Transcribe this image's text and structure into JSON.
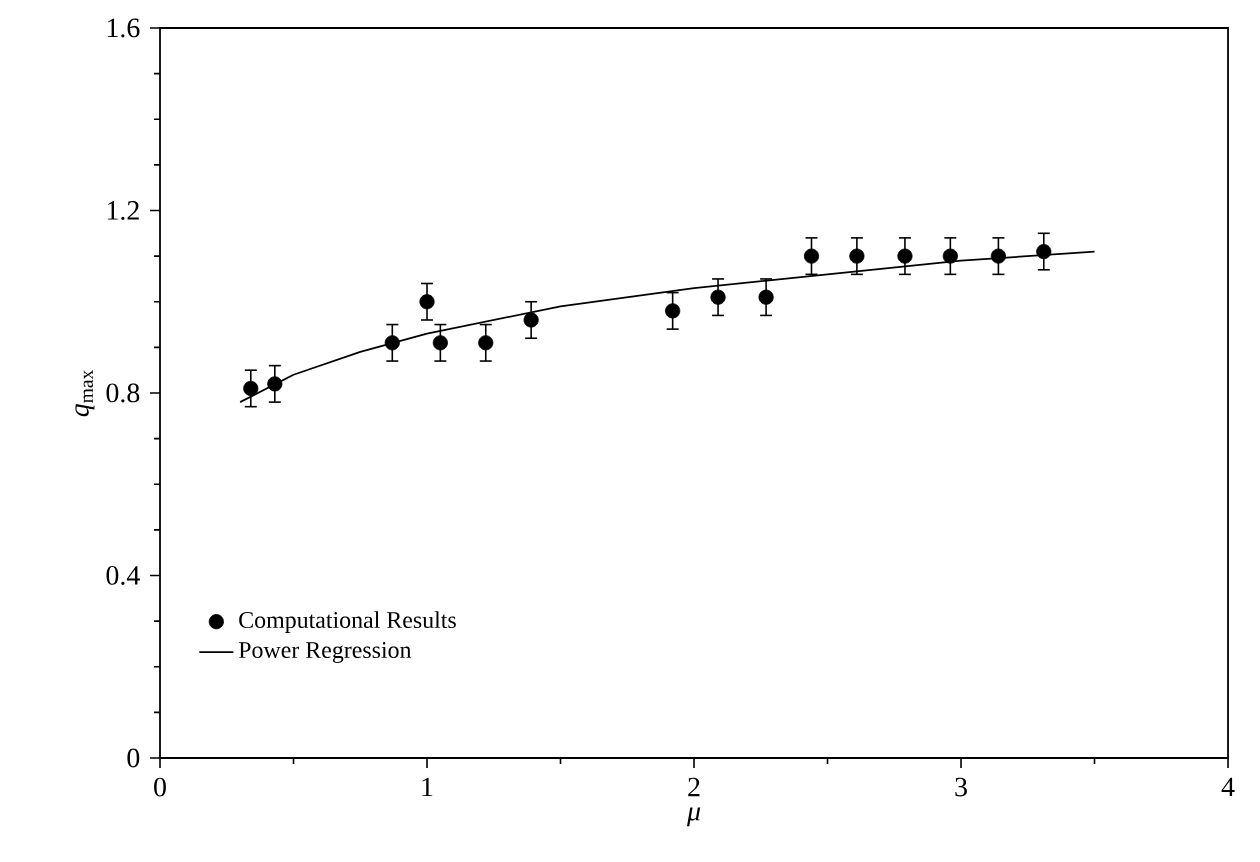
{
  "chart_data": {
    "type": "scatter",
    "xlabel": "μ",
    "ylabel": "*q*$_{max}$",
    "xlim": [
      0,
      4
    ],
    "xticks": [
      0,
      1,
      2,
      3,
      4
    ],
    "ylim": [
      0,
      1.6
    ],
    "yticks": [
      0,
      0.4,
      0.8,
      1.2,
      1.6
    ],
    "grid": false,
    "legend": "bottom left",
    "series": [
      {
        "name": "Computational Results",
        "marker": "circle",
        "color": "#000000",
        "x": [
          0.34,
          0.43,
          0.87,
          1.0,
          1.05,
          1.22,
          1.39,
          1.92,
          2.09,
          2.27,
          2.44,
          2.61,
          2.79,
          2.96,
          3.14,
          3.31
        ],
        "values": [
          0.81,
          0.82,
          0.91,
          1.0,
          0.91,
          0.91,
          0.96,
          0.98,
          1.01,
          1.01,
          1.1,
          1.1,
          1.1,
          1.1,
          1.1,
          1.11
        ],
        "errors": [
          0.04,
          0.04,
          0.04,
          0.04,
          0.04,
          0.04,
          0.04,
          0.04,
          0.04,
          0.04,
          0.04,
          0.04,
          0.04,
          0.04,
          0.04,
          0.04
        ]
      },
      {
        "name": "Power Regression",
        "type": "line",
        "marker": "none",
        "line_style": "solid",
        "color": "#000000",
        "x": [
          0.3,
          0.5,
          0.75,
          1.0,
          1.5,
          2.0,
          2.5,
          3.0,
          3.5
        ],
        "values": [
          0.78,
          0.84,
          0.89,
          0.93,
          0.99,
          1.03,
          1.06,
          1.09,
          1.11
        ]
      }
    ]
  }
}
